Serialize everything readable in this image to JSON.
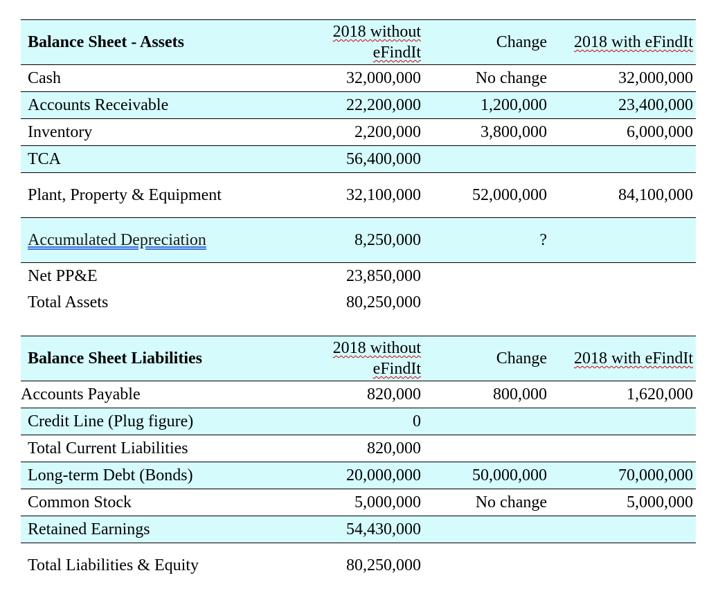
{
  "tables": [
    {
      "header": [
        "Balance Sheet - Assets",
        "2018 without eFindIt",
        "Change",
        "2018 with eFindIt"
      ],
      "rows": [
        [
          "Cash",
          "32,000,000",
          "No change",
          "32,000,000"
        ],
        [
          "Accounts Receivable",
          "22,200,000",
          "1,200,000",
          "23,400,000"
        ],
        [
          "Inventory",
          "2,200,000",
          "3,800,000",
          "6,000,000"
        ],
        [
          "TCA",
          "56,400,000",
          null,
          null
        ],
        [
          "Plant, Property & Equipment",
          "32,100,000",
          "52,000,000",
          "84,100,000"
        ],
        [
          "Accumulated Depreciation",
          "8,250,000",
          "?",
          null
        ],
        [
          "Net PP&E",
          "23,850,000",
          null,
          null
        ],
        [
          "Total Assets",
          "80,250,000",
          null,
          null
        ]
      ]
    },
    {
      "header": [
        "Balance Sheet Liabilities",
        "2018 without eFindIt",
        "Change",
        "2018 with eFindIt"
      ],
      "rows": [
        [
          "Accounts Payable",
          "820,000",
          "800,000",
          "1,620,000"
        ],
        [
          "Credit Line (Plug figure)",
          "0",
          null,
          null
        ],
        [
          "Total Current Liabilities",
          "820,000",
          null,
          null
        ],
        [
          "Long-term Debt (Bonds)",
          "20,000,000",
          "50,000,000",
          "70,000,000"
        ],
        [
          "Common Stock",
          "5,000,000",
          "No change",
          "5,000,000"
        ],
        [
          "Retained Earnings",
          "54,430,000",
          null,
          null
        ],
        [
          "Total Liabilities & Equity",
          "80,250,000",
          null,
          null
        ]
      ]
    }
  ]
}
